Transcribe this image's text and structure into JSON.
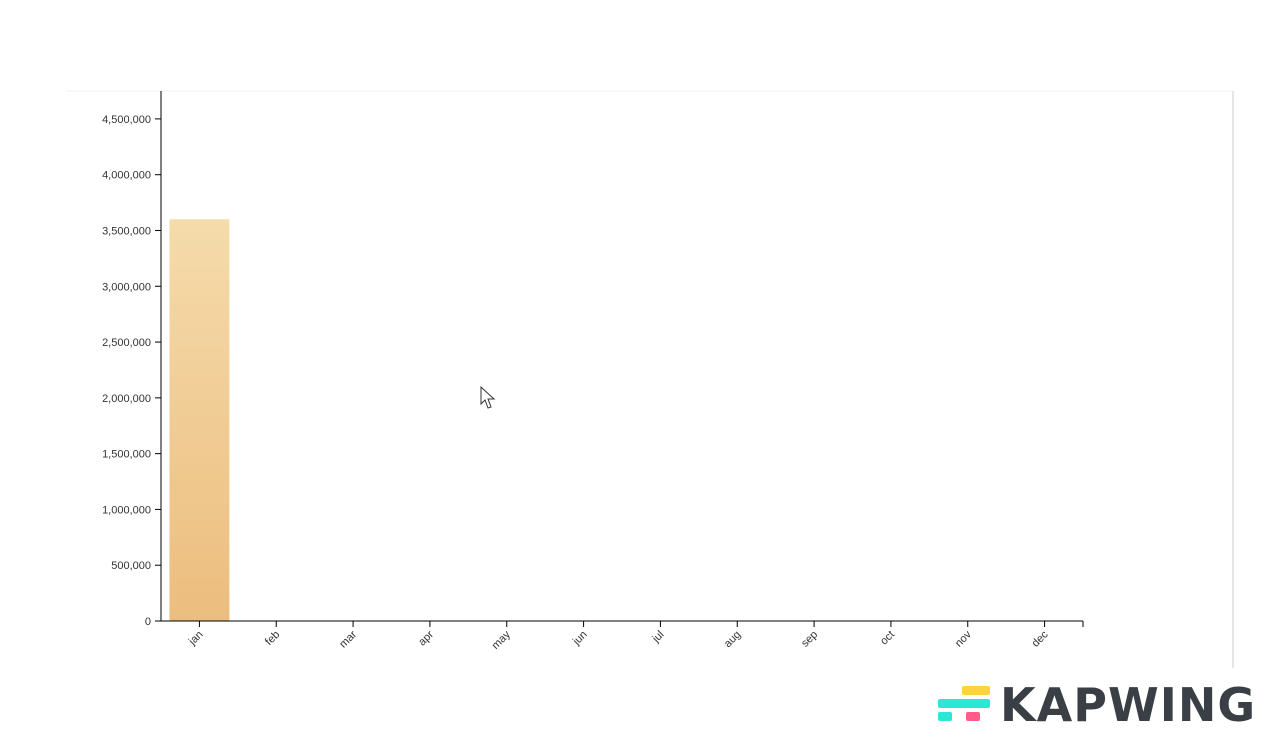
{
  "chart_data": {
    "type": "bar",
    "title": "",
    "xlabel": "",
    "ylabel": "",
    "categories": [
      "jan",
      "feb",
      "mar",
      "apr",
      "may",
      "jun",
      "jul",
      "aug",
      "sep",
      "oct",
      "nov",
      "dec"
    ],
    "values": [
      3600000,
      0,
      0,
      0,
      0,
      0,
      0,
      0,
      0,
      0,
      0,
      0
    ],
    "ylim": [
      0,
      4750000
    ],
    "yticks": [
      0,
      500000,
      1000000,
      1500000,
      2000000,
      2500000,
      3000000,
      3500000,
      4000000,
      4500000
    ],
    "ytick_labels": [
      "0",
      "500,000",
      "1,000,000",
      "1,500,000",
      "2,000,000",
      "2,500,000",
      "3,000,000",
      "3,500,000",
      "4,000,000",
      "4,500,000"
    ],
    "bar_color_top": "#f5dbab",
    "bar_color_bottom": "#ecbd7e",
    "grid": false,
    "legend": "none"
  },
  "watermark": {
    "text": "KAPWING",
    "colors": [
      "#ffd43b",
      "#2ee6d6",
      "#ff5c8a"
    ]
  }
}
